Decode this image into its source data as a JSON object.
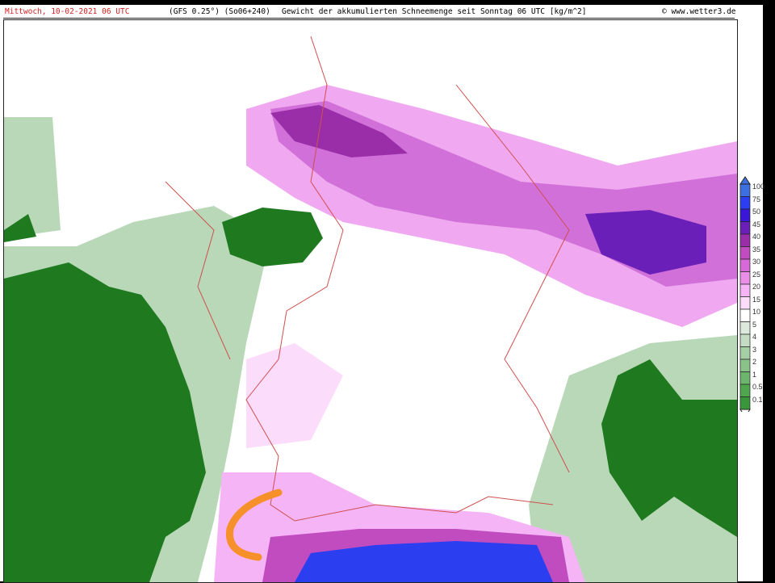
{
  "header": {
    "date": "Mittwoch, 10-02-2021  06 UTC",
    "model": "(GFS 0.25°) (So06+240)",
    "title": "Gewicht der akkumulierten Schneemenge seit Sonntag 06 UTC [kg/m^2]",
    "source": "© www.wetter3.de"
  },
  "legend": {
    "levels": [
      "100",
      "75",
      "50",
      "45",
      "40",
      "35",
      "30",
      "25",
      "20",
      "15",
      "10",
      "5",
      "4",
      "3",
      "2",
      "1",
      "0.5",
      "0.1"
    ],
    "colors": [
      "#3d6fe0",
      "#2b3ff0",
      "#3a16d6",
      "#6a1fb8",
      "#9a2ea8",
      "#c04cc0",
      "#d76ad8",
      "#ea8ee8",
      "#f5b4f5",
      "#fbdcfb",
      "#ffffff",
      "#dde9dd",
      "#c3dcc3",
      "#a6cfa6",
      "#8ac28a",
      "#6db46d",
      "#4fa64f",
      "#3a963a"
    ]
  },
  "colors": {
    "header_date": "#d02020",
    "border_lines": "#d05050",
    "annotation": "#f5902a",
    "land_green": "#1f7a1f"
  }
}
